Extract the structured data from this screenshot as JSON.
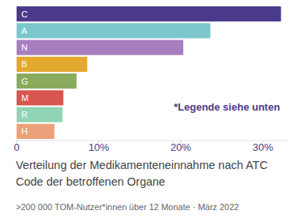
{
  "chart_data": {
    "type": "bar",
    "orientation": "horizontal",
    "title": "Verteilung der Medikamenteneinnahme nach ATC Code der betroffenen Organe",
    "subtitle": ">200 000 TOM-Nutzer*innen über 12 Monate · März 2022",
    "annotations": [
      "*Legende siehe unten"
    ],
    "categories": [
      "C",
      "A",
      "N",
      "B",
      "G",
      "M",
      "R",
      "H"
    ],
    "values": [
      32.2,
      23.6,
      20.3,
      8.6,
      7.3,
      5.7,
      5.6,
      4.6
    ],
    "colors": [
      "#4b3a8c",
      "#7cc7cc",
      "#a77fc0",
      "#e4a82e",
      "#8aab5e",
      "#d85550",
      "#8fd4b5",
      "#eba27a"
    ],
    "xlim": [
      0,
      33
    ],
    "xticks": [
      0,
      {
        "value": 10,
        "label": "10%"
      },
      {
        "value": 20,
        "label": "20%"
      },
      {
        "value": 30,
        "label": "30%"
      }
    ],
    "grid": false
  }
}
